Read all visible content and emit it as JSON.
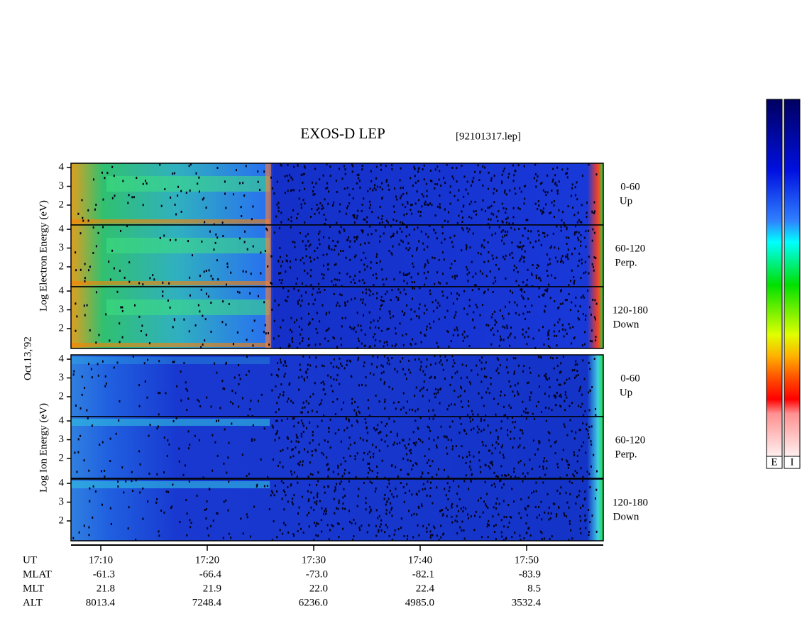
{
  "header": {
    "title": "EXOS-D LEP",
    "file": "[92101317.lep]"
  },
  "date_label": "Oct.13,'92",
  "groups": [
    {
      "axis_label": "Log Electron Energy (eV)",
      "panels": [
        {
          "angle": "0-60",
          "direction": "Up"
        },
        {
          "angle": "60-120",
          "direction": "Perp."
        },
        {
          "angle": "120-180",
          "direction": "Down"
        }
      ]
    },
    {
      "axis_label": "Log Ion Energy (eV)",
      "panels": [
        {
          "angle": "0-60",
          "direction": "Up"
        },
        {
          "angle": "60-120",
          "direction": "Perp."
        },
        {
          "angle": "120-180",
          "direction": "Down"
        }
      ]
    }
  ],
  "y_axis": {
    "ylim": [
      0.94,
      4.23
    ],
    "yticks": [
      2,
      3,
      4
    ]
  },
  "time_axis": {
    "xlim": [
      7.2,
      57.2
    ],
    "xticks": [
      {
        "value": 10,
        "label": "17:10"
      },
      {
        "value": 20,
        "label": "17:20"
      },
      {
        "value": 30,
        "label": "17:30"
      },
      {
        "value": 40,
        "label": "17:40"
      },
      {
        "value": 50,
        "label": "17:50"
      }
    ]
  },
  "ephemeris": {
    "row_names": [
      "UT",
      "MLAT",
      "MLT",
      "ALT"
    ],
    "rows": [
      [
        "-61.3",
        "-66.4",
        "-73.0",
        "-82.1",
        "-83.9"
      ],
      [
        "21.8",
        "21.9",
        "22.0",
        "22.4",
        "8.5"
      ],
      [
        "8013.4",
        "7248.4",
        "6236.0",
        "4985.0",
        "3532.4"
      ]
    ]
  },
  "colorbars": [
    "E",
    "I"
  ]
}
